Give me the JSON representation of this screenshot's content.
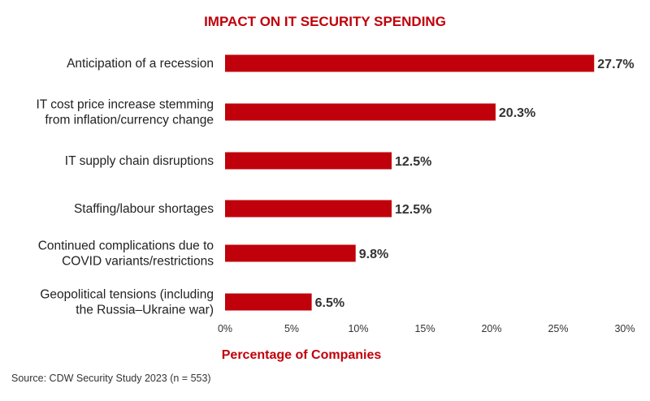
{
  "colors": {
    "accent": "#c0000a",
    "bar": "#c0000a",
    "text": "#222222"
  },
  "chart_data": {
    "type": "bar",
    "orientation": "horizontal",
    "title": "IMPACT ON IT SECURITY SPENDING",
    "xlabel": "Percentage of Companies",
    "ylabel": "",
    "xlim": [
      0,
      30
    ],
    "ticks": [
      0,
      5,
      10,
      15,
      20,
      25,
      30
    ],
    "tick_labels": [
      "0%",
      "5%",
      "10%",
      "15%",
      "20%",
      "25%",
      "30%"
    ],
    "categories": [
      [
        "Anticipation of a recession"
      ],
      [
        "IT cost price increase stemming",
        "from inflation/currency change"
      ],
      [
        "IT supply chain disruptions"
      ],
      [
        "Staffing/labour shortages"
      ],
      [
        "Continued complications due to",
        "COVID variants/restrictions"
      ],
      [
        "Geopolitical tensions (including",
        "the Russia–Ukraine war)"
      ]
    ],
    "values": [
      27.7,
      20.3,
      12.5,
      12.5,
      9.8,
      6.5
    ],
    "value_labels": [
      "27.7%",
      "20.3%",
      "12.5%",
      "12.5%",
      "9.8%",
      "6.5%"
    ],
    "grid": false
  },
  "footer": {
    "source": "Source: CDW Security Study 2023 (n = 553)"
  }
}
